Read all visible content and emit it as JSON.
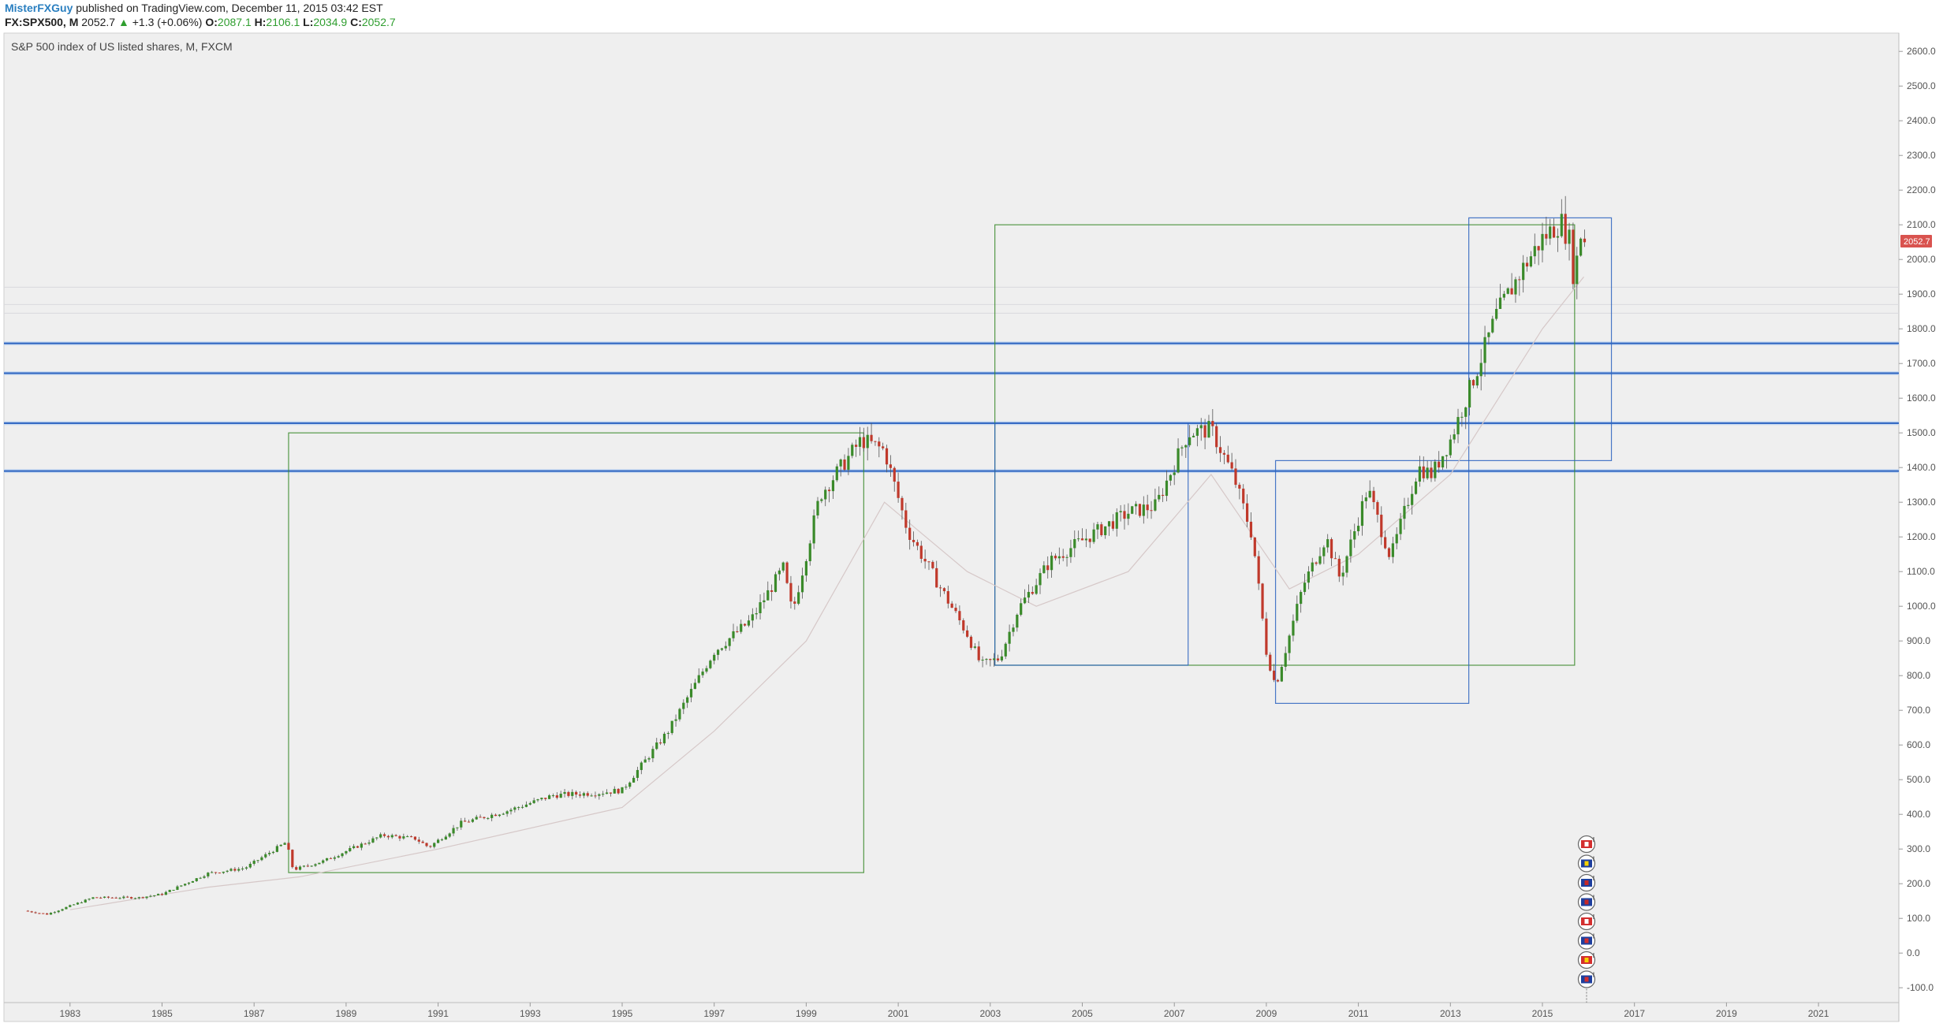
{
  "header": {
    "author": "MisterFXGuy",
    "published_text": " published on TradingView.com, December 11, 2015 03:42 EST",
    "symbol": "FX:SPX500, M",
    "last": "2052.7",
    "change_arrow": "▲",
    "change": "+1.3 (+0.06%)",
    "open_label": "O:",
    "open": "2087.1",
    "high_label": "H:",
    "high": "2106.1",
    "low_label": "L:",
    "low": "2034.9",
    "close_label": "C:",
    "close": "2052.7"
  },
  "chart_data": {
    "type": "candlestick",
    "title": "S&P 500 index of US listed shares, M, FXCM",
    "xlabel": "",
    "ylabel": "",
    "ylim": [
      -150,
      2700
    ],
    "xlim": [
      1982.0,
      2022.5
    ],
    "y_ticks": [
      -100,
      0,
      100,
      200,
      300,
      400,
      500,
      600,
      700,
      800,
      900,
      1000,
      1100,
      1200,
      1300,
      1400,
      1500,
      1600,
      1700,
      1800,
      1900,
      2000,
      2100,
      2200,
      2300,
      2400,
      2500,
      2600
    ],
    "y_tick_labels": [
      "-100.0",
      "0.0",
      "100.0",
      "200.0",
      "300.0",
      "400.0",
      "500.0",
      "600.0",
      "700.0",
      "800.0",
      "900.0",
      "1000.0",
      "1100.0",
      "1200.0",
      "1300.0",
      "1400.0",
      "1500.0",
      "1600.0",
      "1700.0",
      "1800.0",
      "1900.0",
      "2000.0",
      "2100.0",
      "2200.0",
      "2300.0",
      "2400.0",
      "2500.0",
      "2600.0"
    ],
    "x_ticks": [
      "1983",
      "1985",
      "1987",
      "1989",
      "1991",
      "1993",
      "1995",
      "1997",
      "1999",
      "2001",
      "2003",
      "2005",
      "2007",
      "2009",
      "2011",
      "2013",
      "2015",
      "2017",
      "2019",
      "2021"
    ],
    "price_series_anchors": [
      [
        1982.0,
        122
      ],
      [
        1982.5,
        112
      ],
      [
        1983.5,
        160
      ],
      [
        1984.5,
        160
      ],
      [
        1985.0,
        170
      ],
      [
        1986.0,
        230
      ],
      [
        1986.8,
        245
      ],
      [
        1987.7,
        320
      ],
      [
        1987.85,
        240
      ],
      [
        1988.5,
        265
      ],
      [
        1989.8,
        340
      ],
      [
        1990.5,
        330
      ],
      [
        1990.8,
        305
      ],
      [
        1991.5,
        375
      ],
      [
        1992.5,
        410
      ],
      [
        1993.5,
        455
      ],
      [
        1994.5,
        462
      ],
      [
        1995.0,
        470
      ],
      [
        1996.0,
        640
      ],
      [
        1997.0,
        870
      ],
      [
        1997.8,
        960
      ],
      [
        1998.5,
        1110
      ],
      [
        1998.7,
        980
      ],
      [
        1999.3,
        1320
      ],
      [
        2000.2,
        1480
      ],
      [
        2000.7,
        1450
      ],
      [
        2001.2,
        1220
      ],
      [
        2001.8,
        1080
      ],
      [
        2002.5,
        920
      ],
      [
        2002.8,
        830
      ],
      [
        2003.2,
        850
      ],
      [
        2003.6,
        990
      ],
      [
        2004.3,
        1130
      ],
      [
        2005.0,
        1190
      ],
      [
        2006.0,
        1270
      ],
      [
        2006.6,
        1290
      ],
      [
        2007.3,
        1500
      ],
      [
        2007.8,
        1510
      ],
      [
        2008.3,
        1370
      ],
      [
        2008.7,
        1200
      ],
      [
        2009.0,
        870
      ],
      [
        2009.2,
        770
      ],
      [
        2009.8,
        1060
      ],
      [
        2010.3,
        1200
      ],
      [
        2010.6,
        1080
      ],
      [
        2011.2,
        1340
      ],
      [
        2011.7,
        1140
      ],
      [
        2012.3,
        1400
      ],
      [
        2012.6,
        1380
      ],
      [
        2013.0,
        1480
      ],
      [
        2013.6,
        1690
      ],
      [
        2014.0,
        1840
      ],
      [
        2014.6,
        1980
      ],
      [
        2015.0,
        2060
      ],
      [
        2015.4,
        2110
      ],
      [
        2015.6,
        2050
      ],
      [
        2015.7,
        1920
      ],
      [
        2015.8,
        2080
      ],
      [
        2015.95,
        2052.7
      ]
    ],
    "moving_average_anchors": [
      [
        1983,
        125
      ],
      [
        1986,
        190
      ],
      [
        1988,
        220
      ],
      [
        1991,
        300
      ],
      [
        1995,
        420
      ],
      [
        1997,
        640
      ],
      [
        1999,
        900
      ],
      [
        2000.7,
        1300
      ],
      [
        2002.5,
        1100
      ],
      [
        2004,
        1000
      ],
      [
        2006,
        1100
      ],
      [
        2007.8,
        1380
      ],
      [
        2009.5,
        1050
      ],
      [
        2011,
        1150
      ],
      [
        2013,
        1380
      ],
      [
        2015,
        1800
      ],
      [
        2015.9,
        1950
      ]
    ],
    "current_price": 2052.7,
    "current_price_label": "2052.7",
    "horizontal_levels": [
      1758,
      1672,
      1528,
      1390
    ],
    "faint_levels": [
      1920,
      1870,
      1845
    ],
    "boxes": [
      {
        "color": "#3a8a2a",
        "x0": 1987.75,
        "x1": 2000.25,
        "y0": 232,
        "y1": 1500
      },
      {
        "color": "#3a8a2a",
        "x0": 2003.1,
        "x1": 2015.7,
        "y0": 830,
        "y1": 2100
      },
      {
        "color": "#2a62c0",
        "x0": 2003.1,
        "x1": 2007.3,
        "y0": 830,
        "y1": 1528
      },
      {
        "color": "#2a62c0",
        "x0": 2009.2,
        "x1": 2013.4,
        "y0": 720,
        "y1": 1420
      },
      {
        "color": "#2a62c0",
        "x0": 2013.4,
        "x1": 2016.5,
        "y0": 1420,
        "y1": 2120
      }
    ],
    "event_flags": [
      "canada-flag-icon",
      "eu-flag-icon",
      "australia-flag-icon",
      "new-zealand-flag-icon",
      "switzerland-flag-icon",
      "uk-flag-icon",
      "china-flag-icon",
      "us-flag-icon"
    ],
    "colors": {
      "up": "#3a8a2a",
      "down": "#c0392b",
      "background": "#efefef",
      "level": "#2a62c0",
      "price_tag": "#d9534f"
    },
    "grid": false,
    "legend": "none"
  }
}
